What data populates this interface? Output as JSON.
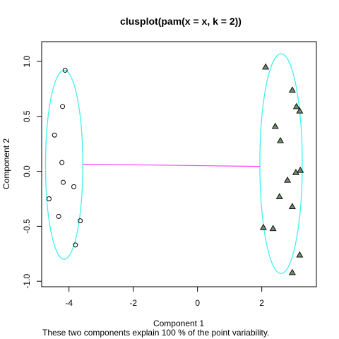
{
  "chart_data": {
    "type": "scatter",
    "title": "clusplot(pam(x = x, k = 2))",
    "xlabel": "Component 1",
    "ylabel": "Component 2",
    "subtitle": "These two components explain 100 % of the point variability.",
    "xlim": [
      -4.85,
      3.7
    ],
    "ylim": [
      -1.05,
      1.18
    ],
    "x_ticks": [
      -4,
      -2,
      0,
      2
    ],
    "y_ticks": [
      -1.0,
      -0.5,
      0.0,
      0.5,
      1.0
    ],
    "x_tick_labels": [
      "-4",
      "-2",
      "0",
      "2"
    ],
    "y_tick_labels": [
      "-1.0",
      "-0.5",
      "0.0",
      "0.5",
      "1.0"
    ],
    "grid": false,
    "colors": {
      "ellipse": "#40f0f0",
      "connector": "#ff40ff",
      "points": "#000000",
      "triangle_fill": "#6e8b6e"
    },
    "series": [
      {
        "marker": "circle",
        "points": [
          [
            -4.12,
            0.92
          ],
          [
            -4.2,
            0.59
          ],
          [
            -4.45,
            0.33
          ],
          [
            -4.22,
            0.08
          ],
          [
            -4.18,
            -0.1
          ],
          [
            -3.85,
            -0.14
          ],
          [
            -4.62,
            -0.25
          ],
          [
            -4.32,
            -0.41
          ],
          [
            -3.65,
            -0.45
          ],
          [
            -3.8,
            -0.67
          ]
        ]
      },
      {
        "marker": "triangle",
        "points": [
          [
            2.12,
            0.95
          ],
          [
            2.95,
            0.74
          ],
          [
            3.08,
            0.59
          ],
          [
            3.18,
            0.55
          ],
          [
            2.42,
            0.41
          ],
          [
            2.58,
            0.28
          ],
          [
            3.2,
            0.01
          ],
          [
            3.06,
            -0.01
          ],
          [
            2.8,
            -0.08
          ],
          [
            2.55,
            -0.23
          ],
          [
            2.95,
            -0.32
          ],
          [
            2.05,
            -0.51
          ],
          [
            2.35,
            -0.52
          ],
          [
            3.18,
            -0.76
          ],
          [
            2.95,
            -0.92
          ]
        ]
      }
    ],
    "clusters": [
      {
        "center": [
          -4.15,
          0.06
        ],
        "rx": 0.58,
        "ry": 0.86
      },
      {
        "center": [
          2.6,
          0.07
        ],
        "rx": 0.66,
        "ry": 1.0
      }
    ],
    "connector": {
      "from": [
        -3.57,
        0.065
      ],
      "to": [
        1.94,
        0.045
      ]
    }
  }
}
